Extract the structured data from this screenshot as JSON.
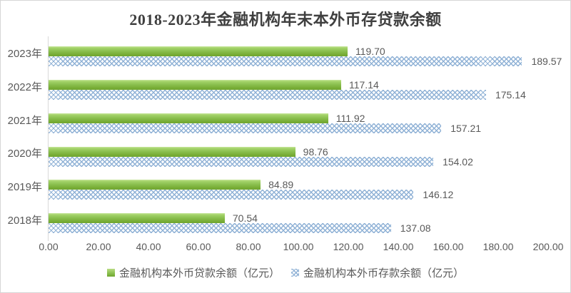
{
  "chart_data": {
    "type": "bar",
    "orientation": "horizontal",
    "title": "2018-2023年金融机构年末本外币存贷款余额",
    "categories": [
      "2023年",
      "2022年",
      "2021年",
      "2020年",
      "2019年",
      "2018年"
    ],
    "series": [
      {
        "name": "金融机构本外币贷款余额（亿元）",
        "values": [
          119.7,
          117.14,
          111.92,
          98.76,
          84.89,
          70.54
        ],
        "color": "#8cc151",
        "fill_style": "gradient-solid"
      },
      {
        "name": "金融机构本外币存款余额（亿元）",
        "values": [
          189.57,
          175.14,
          157.21,
          154.02,
          146.12,
          137.08
        ],
        "color": "#95b3d7",
        "fill_style": "pattern-diamond"
      }
    ],
    "value_labels": {
      "loans": [
        "119.70",
        "117.14",
        "111.92",
        "98.76",
        "84.89",
        "70.54"
      ],
      "deposits": [
        "189.57",
        "175.14",
        "157.21",
        "154.02",
        "146.12",
        "137.08"
      ]
    },
    "xlim": [
      0,
      200
    ],
    "x_tick_step": 20,
    "x_tick_labels": [
      "0.00",
      "20.00",
      "40.00",
      "60.00",
      "80.00",
      "100.00",
      "120.00",
      "140.00",
      "160.00",
      "180.00",
      "200.00"
    ],
    "grid": false,
    "legend_position": "bottom"
  },
  "colors": {
    "title_text": "#3f3f3f",
    "axis_text": "#595959",
    "axis_line": "#d9d9d9",
    "loan_bar_green": "#8cc151",
    "deposit_pattern_blue": "#95b3d7",
    "background": "#ffffff"
  }
}
